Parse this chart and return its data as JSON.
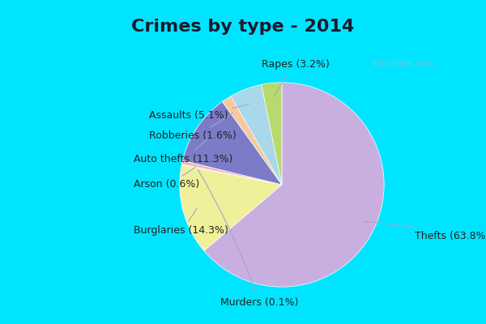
{
  "title": "Crimes by type - 2014",
  "categories": [
    "Thefts",
    "Burglaries",
    "Murders",
    "Arson",
    "Auto thefts",
    "Robberies",
    "Assaults",
    "Rapes"
  ],
  "values": [
    63.8,
    14.3,
    0.1,
    0.6,
    11.3,
    1.6,
    5.1,
    3.2
  ],
  "colors": [
    "#c9aee0",
    "#f0f09a",
    "#d4edda",
    "#f5b8b8",
    "#7b7bc8",
    "#f5c9a0",
    "#a8d8ea",
    "#b8d96e"
  ],
  "bg_cyan": "#00e5ff",
  "bg_inner": "#dff0e8",
  "title_fontsize": 16,
  "label_fontsize": 9,
  "watermark": "City-Data.com"
}
